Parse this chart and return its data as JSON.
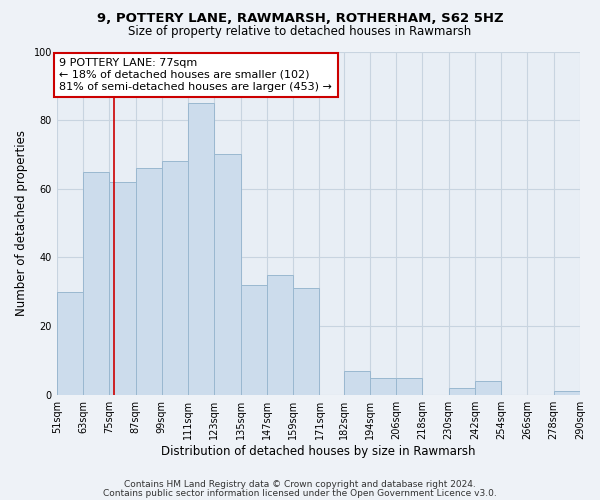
{
  "title_line1": "9, POTTERY LANE, RAWMARSH, ROTHERHAM, S62 5HZ",
  "title_line2": "Size of property relative to detached houses in Rawmarsh",
  "xlabel": "Distribution of detached houses by size in Rawmarsh",
  "ylabel": "Number of detached properties",
  "bar_left_edges": [
    51,
    63,
    75,
    87,
    99,
    111,
    123,
    135,
    147,
    159,
    171,
    182,
    194,
    206,
    218,
    230,
    242,
    254,
    266,
    278
  ],
  "bar_rights": [
    63,
    75,
    87,
    99,
    111,
    123,
    135,
    147,
    159,
    171,
    182,
    194,
    206,
    218,
    230,
    242,
    254,
    266,
    278,
    290
  ],
  "bar_heights": [
    30,
    65,
    62,
    66,
    68,
    85,
    70,
    32,
    35,
    31,
    0,
    7,
    5,
    5,
    0,
    2,
    4,
    0,
    0,
    1
  ],
  "tick_labels": [
    "51sqm",
    "63sqm",
    "75sqm",
    "87sqm",
    "99sqm",
    "111sqm",
    "123sqm",
    "135sqm",
    "147sqm",
    "159sqm",
    "171sqm",
    "182sqm",
    "194sqm",
    "206sqm",
    "218sqm",
    "230sqm",
    "242sqm",
    "254sqm",
    "266sqm",
    "278sqm",
    "290sqm"
  ],
  "tick_positions": [
    51,
    63,
    75,
    87,
    99,
    111,
    123,
    135,
    147,
    159,
    171,
    182,
    194,
    206,
    218,
    230,
    242,
    254,
    266,
    278,
    290
  ],
  "bar_color": "#ccdcec",
  "bar_edge_color": "#9ab8d0",
  "vline_x": 77,
  "vline_color": "#cc0000",
  "annotation_title": "9 POTTERY LANE: 77sqm",
  "annotation_line1": "← 18% of detached houses are smaller (102)",
  "annotation_line2": "81% of semi-detached houses are larger (453) →",
  "annotation_box_facecolor": "#ffffff",
  "annotation_box_edgecolor": "#cc0000",
  "ylim": [
    0,
    100
  ],
  "yticks": [
    0,
    20,
    40,
    60,
    80,
    100
  ],
  "xlim_left": 51,
  "xlim_right": 290,
  "footer_line1": "Contains HM Land Registry data © Crown copyright and database right 2024.",
  "footer_line2": "Contains public sector information licensed under the Open Government Licence v3.0.",
  "background_color": "#eef2f7",
  "plot_bg_color": "#e8eef5",
  "grid_color": "#c8d4e0",
  "title_fontsize": 9.5,
  "subtitle_fontsize": 8.5,
  "ylabel_fontsize": 8.5,
  "xlabel_fontsize": 8.5,
  "tick_fontsize": 7,
  "annotation_fontsize": 8,
  "footer_fontsize": 6.5
}
